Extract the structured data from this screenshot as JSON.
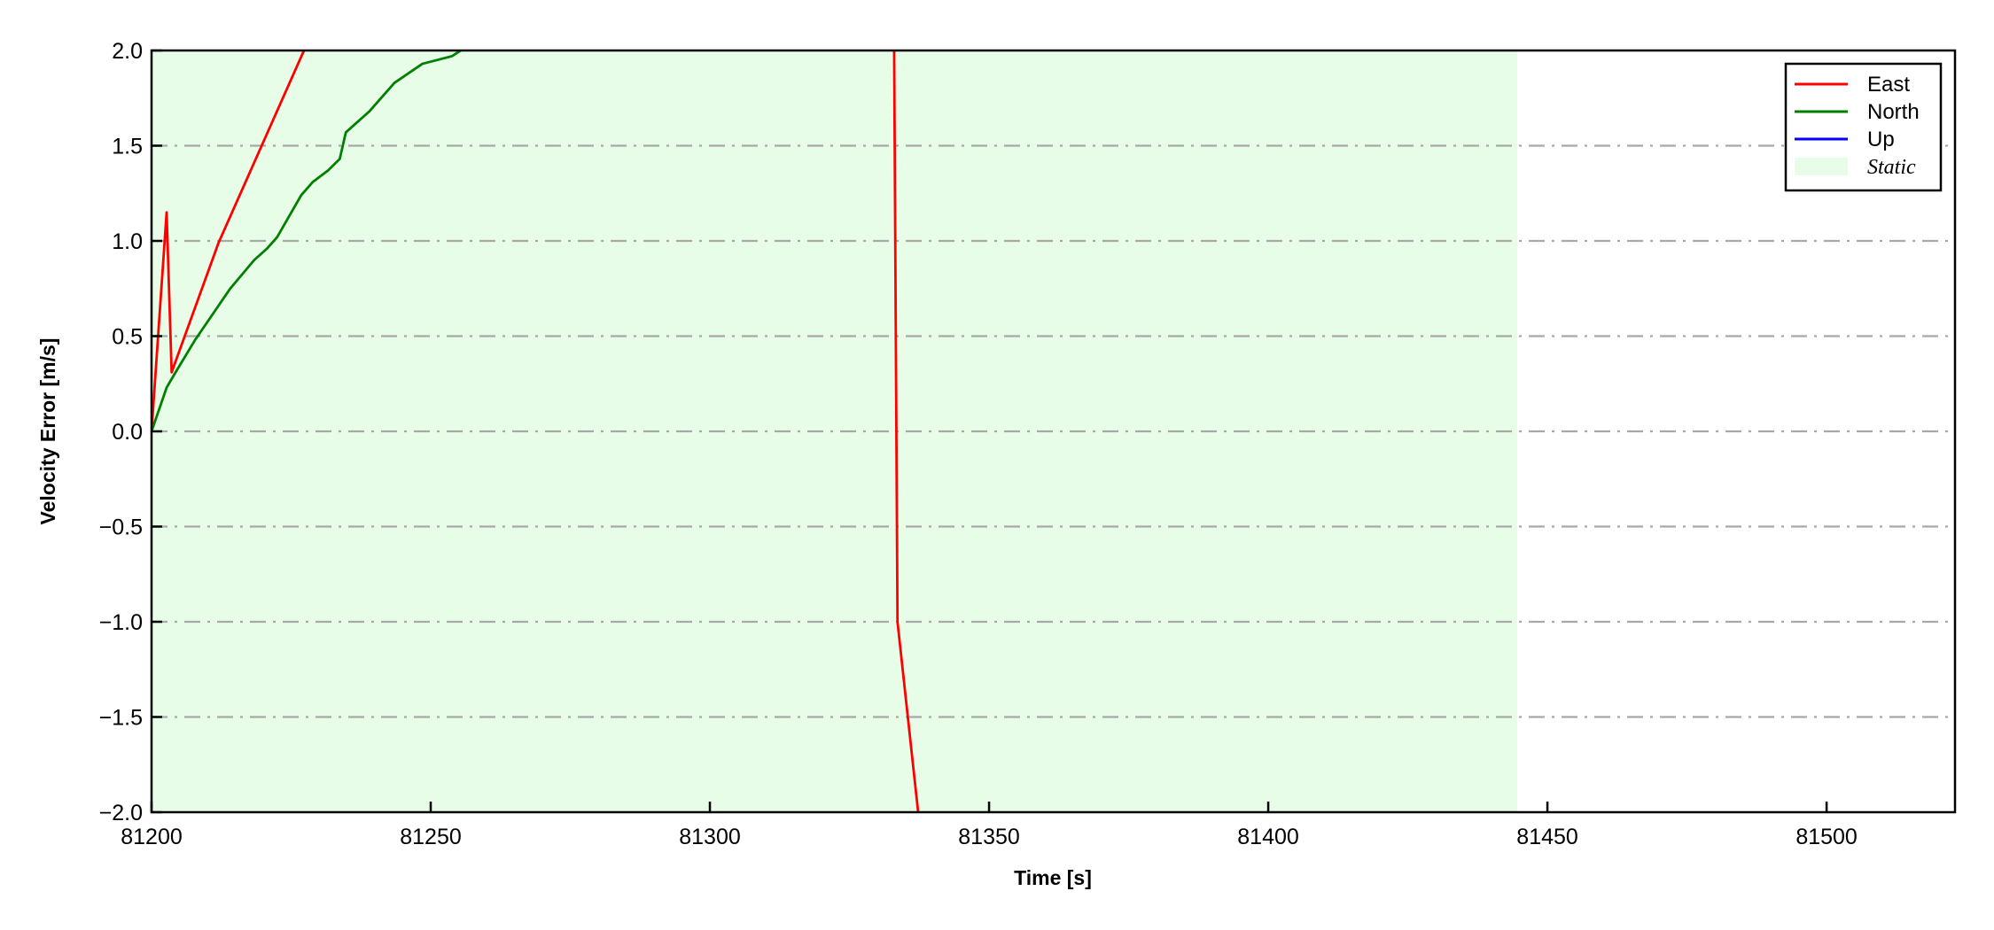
{
  "chart_data": {
    "type": "line",
    "title": "",
    "xlabel": "Time [s]",
    "ylabel": "Velocity Error [m/s]",
    "xlim": [
      81200,
      81523
    ],
    "ylim": [
      -2.0,
      2.0
    ],
    "xticks": [
      81200,
      81250,
      81300,
      81350,
      81400,
      81450,
      81500
    ],
    "xtick_labels": [
      "81200",
      "81250",
      "81300",
      "81350",
      "81400",
      "81450",
      "81500"
    ],
    "yticks": [
      2.0,
      1.5,
      1.0,
      0.5,
      0.0,
      -0.5,
      -1.0,
      -1.5,
      -2.0
    ],
    "ytick_labels": [
      "2.0",
      "1.5",
      "1.0",
      "0.5",
      "0.0",
      "−0.5",
      "−1.0",
      "−1.5",
      "−2.0"
    ],
    "grid": {
      "y": true,
      "x": false,
      "style": "dash-dot",
      "color": "#a8a8a8"
    },
    "legend_placement": "top-right",
    "static_region": {
      "name": "Static",
      "x_start": 81200,
      "x_end": 81444.6,
      "color": "#e8fde8"
    },
    "series": [
      {
        "name": "East",
        "color": "#ff0000",
        "segments": [
          [
            [
              81200,
              0.0
            ],
            [
              81202.7,
              1.15
            ],
            [
              81203.6,
              0.31
            ],
            [
              81212,
              0.99
            ],
            [
              81227.3,
              2.0
            ],
            [
              81229,
              2.1
            ]
          ],
          [
            [
              81332.8,
              2.3
            ],
            [
              81333.0,
              2.0
            ],
            [
              81333.6,
              -1.0
            ],
            [
              81337.3,
              -2.0
            ],
            [
              81337.6,
              -2.1
            ]
          ]
        ]
      },
      {
        "name": "North",
        "color": "#008000",
        "segments": [
          [
            [
              81200,
              0.0
            ],
            [
              81202.7,
              0.23
            ],
            [
              81204.1,
              0.3
            ],
            [
              81207.8,
              0.48
            ],
            [
              81214.1,
              0.75
            ],
            [
              81218.4,
              0.9
            ],
            [
              81220.7,
              0.96
            ],
            [
              81222.5,
              1.02
            ],
            [
              81226.8,
              1.24
            ],
            [
              81228.9,
              1.31
            ],
            [
              81231.6,
              1.37
            ],
            [
              81233.7,
              1.43
            ],
            [
              81234.8,
              1.57
            ],
            [
              81239,
              1.68
            ],
            [
              81243.5,
              1.83
            ],
            [
              81248.5,
              1.93
            ],
            [
              81253.8,
              1.97
            ],
            [
              81255.4,
              2.0
            ],
            [
              81257,
              2.05
            ]
          ]
        ]
      },
      {
        "name": "Up",
        "color": "#0000ff",
        "segments": []
      }
    ]
  }
}
